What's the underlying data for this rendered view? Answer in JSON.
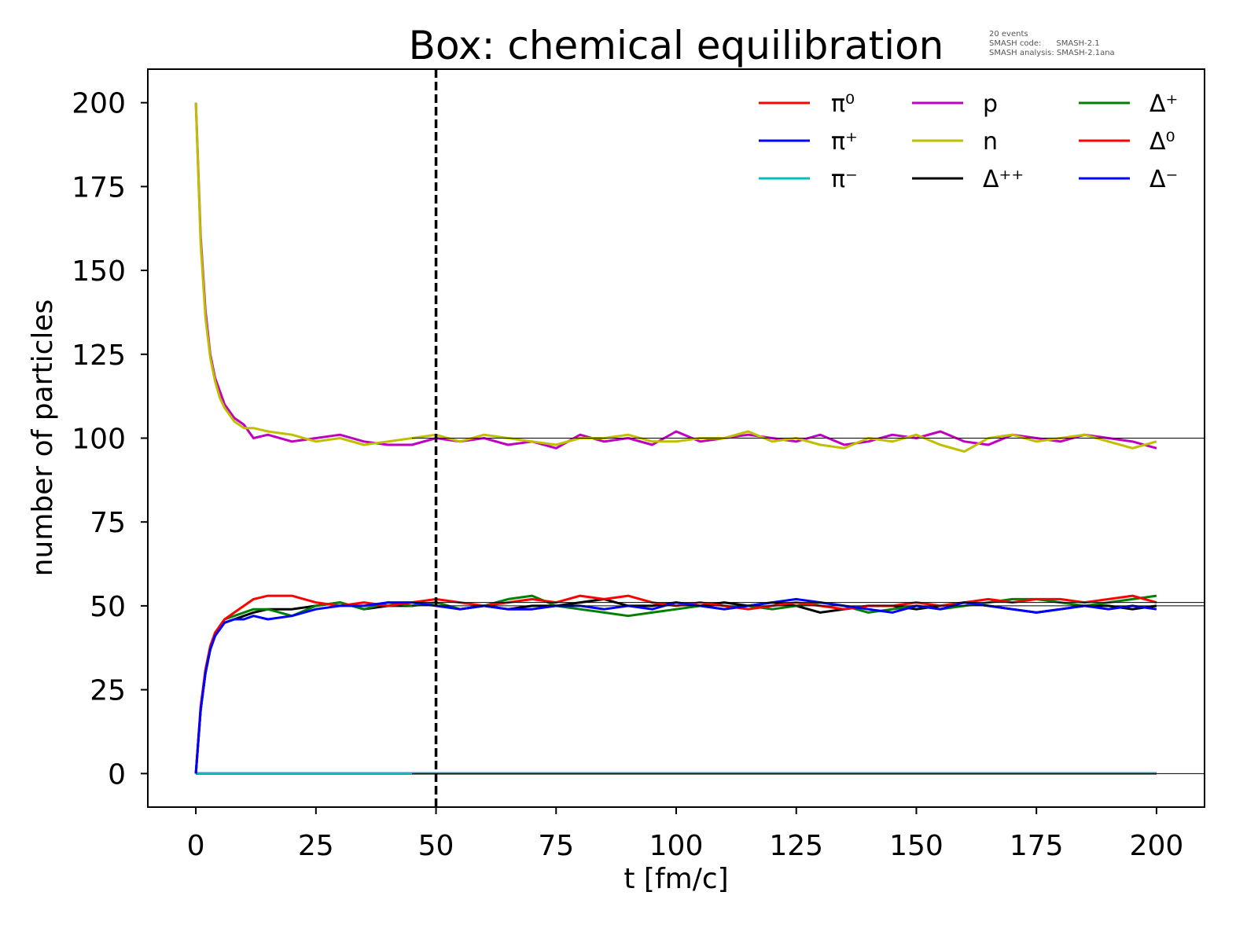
{
  "chart_data": {
    "type": "line",
    "title": "Box: chemical equilibration",
    "annotation": [
      "20 events",
      "SMASH code:      SMASH-2.1",
      "SMASH analysis: SMASH-2.1ana"
    ],
    "xlabel": "t [fm/c]",
    "ylabel": "number of particles",
    "xlim": [
      -10,
      210
    ],
    "ylim": [
      -10,
      210
    ],
    "xticks": [
      0,
      25,
      50,
      75,
      100,
      125,
      150,
      175,
      200
    ],
    "yticks": [
      0,
      25,
      50,
      75,
      100,
      125,
      150,
      175,
      200
    ],
    "grid": false,
    "legend_placement": "top-right",
    "legend_columns": 3,
    "vertical_line": {
      "x": 50,
      "style": "dashed",
      "color": "#000000"
    },
    "reference_lines": [
      {
        "y": 100,
        "x_start": 45
      },
      {
        "y": 50,
        "x_start": 45
      },
      {
        "y": 51,
        "x_start": 45
      },
      {
        "y": 0,
        "x_start": 45
      }
    ],
    "x": [
      0,
      1,
      2,
      3,
      4,
      5,
      6,
      8,
      10,
      12,
      15,
      20,
      25,
      30,
      35,
      40,
      45,
      50,
      55,
      60,
      65,
      70,
      75,
      80,
      85,
      90,
      95,
      100,
      105,
      110,
      115,
      120,
      125,
      130,
      135,
      140,
      145,
      150,
      155,
      160,
      165,
      170,
      175,
      180,
      185,
      190,
      195,
      200
    ],
    "series": [
      {
        "name": "π⁰",
        "color": "#ff0000",
        "x": [
          0,
          200
        ],
        "values": [
          0,
          0
        ]
      },
      {
        "name": "π⁺",
        "color": "#0000ff",
        "x": [
          0,
          200
        ],
        "values": [
          0,
          0
        ]
      },
      {
        "name": "π⁻",
        "color": "#00bfbf",
        "x": [
          0,
          200
        ],
        "values": [
          0,
          0
        ]
      },
      {
        "name": "p",
        "color": "#bf00bf",
        "values": [
          200,
          160,
          138,
          125,
          118,
          114,
          110,
          106,
          104,
          100,
          101,
          99,
          100,
          101,
          99,
          98,
          98,
          100,
          99,
          100,
          98,
          99,
          97,
          101,
          99,
          100,
          98,
          102,
          99,
          100,
          101,
          100,
          99,
          101,
          98,
          99,
          101,
          100,
          102,
          99,
          98,
          101,
          100,
          99,
          101,
          100,
          99,
          97
        ]
      },
      {
        "name": "n",
        "color": "#bfbf00",
        "values": [
          200,
          158,
          136,
          124,
          117,
          112,
          109,
          105,
          103,
          103,
          102,
          101,
          99,
          100,
          98,
          99,
          100,
          101,
          99,
          101,
          100,
          99,
          98,
          100,
          100,
          101,
          99,
          99,
          100,
          100,
          102,
          99,
          100,
          98,
          97,
          100,
          99,
          101,
          98,
          96,
          100,
          101,
          99,
          100,
          101,
          99,
          97,
          99
        ]
      },
      {
        "name": "Δ⁺⁺",
        "color": "#000000",
        "values": [
          0,
          19,
          30,
          37,
          41,
          44,
          45,
          46,
          47,
          48,
          49,
          49,
          50,
          51,
          49,
          50,
          50,
          51,
          49,
          50,
          49,
          50,
          50,
          51,
          52,
          50,
          50,
          51,
          50,
          51,
          50,
          51,
          50,
          48,
          49,
          50,
          50,
          49,
          50,
          51,
          50,
          49,
          48,
          49,
          50,
          50,
          49,
          50
        ]
      },
      {
        "name": "Δ⁺",
        "color": "#008000",
        "values": [
          0,
          19,
          30,
          37,
          41,
          44,
          46,
          47,
          48,
          49,
          49,
          47,
          50,
          51,
          49,
          51,
          50,
          51,
          49,
          50,
          52,
          53,
          50,
          49,
          48,
          47,
          48,
          49,
          50,
          49,
          50,
          49,
          50,
          51,
          50,
          48,
          49,
          50,
          49,
          50,
          51,
          52,
          52,
          51,
          50,
          51,
          52,
          53
        ]
      },
      {
        "name": "Δ⁰",
        "color": "#ff0000",
        "values": [
          0,
          20,
          31,
          38,
          42,
          44,
          46,
          48,
          50,
          52,
          53,
          53,
          51,
          50,
          51,
          50,
          51,
          52,
          51,
          50,
          51,
          52,
          51,
          53,
          52,
          53,
          51,
          50,
          51,
          50,
          49,
          50,
          51,
          50,
          49,
          50,
          50,
          51,
          50,
          51,
          52,
          51,
          52,
          52,
          51,
          52,
          53,
          51
        ]
      },
      {
        "name": "Δ⁻",
        "color": "#0000ff",
        "values": [
          0,
          19,
          30,
          37,
          41,
          43,
          45,
          46,
          46,
          47,
          46,
          47,
          49,
          50,
          50,
          51,
          51,
          50,
          49,
          50,
          49,
          49,
          50,
          50,
          49,
          50,
          49,
          51,
          50,
          49,
          50,
          51,
          52,
          51,
          50,
          49,
          48,
          50,
          49,
          51,
          50,
          49,
          48,
          49,
          50,
          49,
          50,
          49
        ]
      }
    ]
  }
}
